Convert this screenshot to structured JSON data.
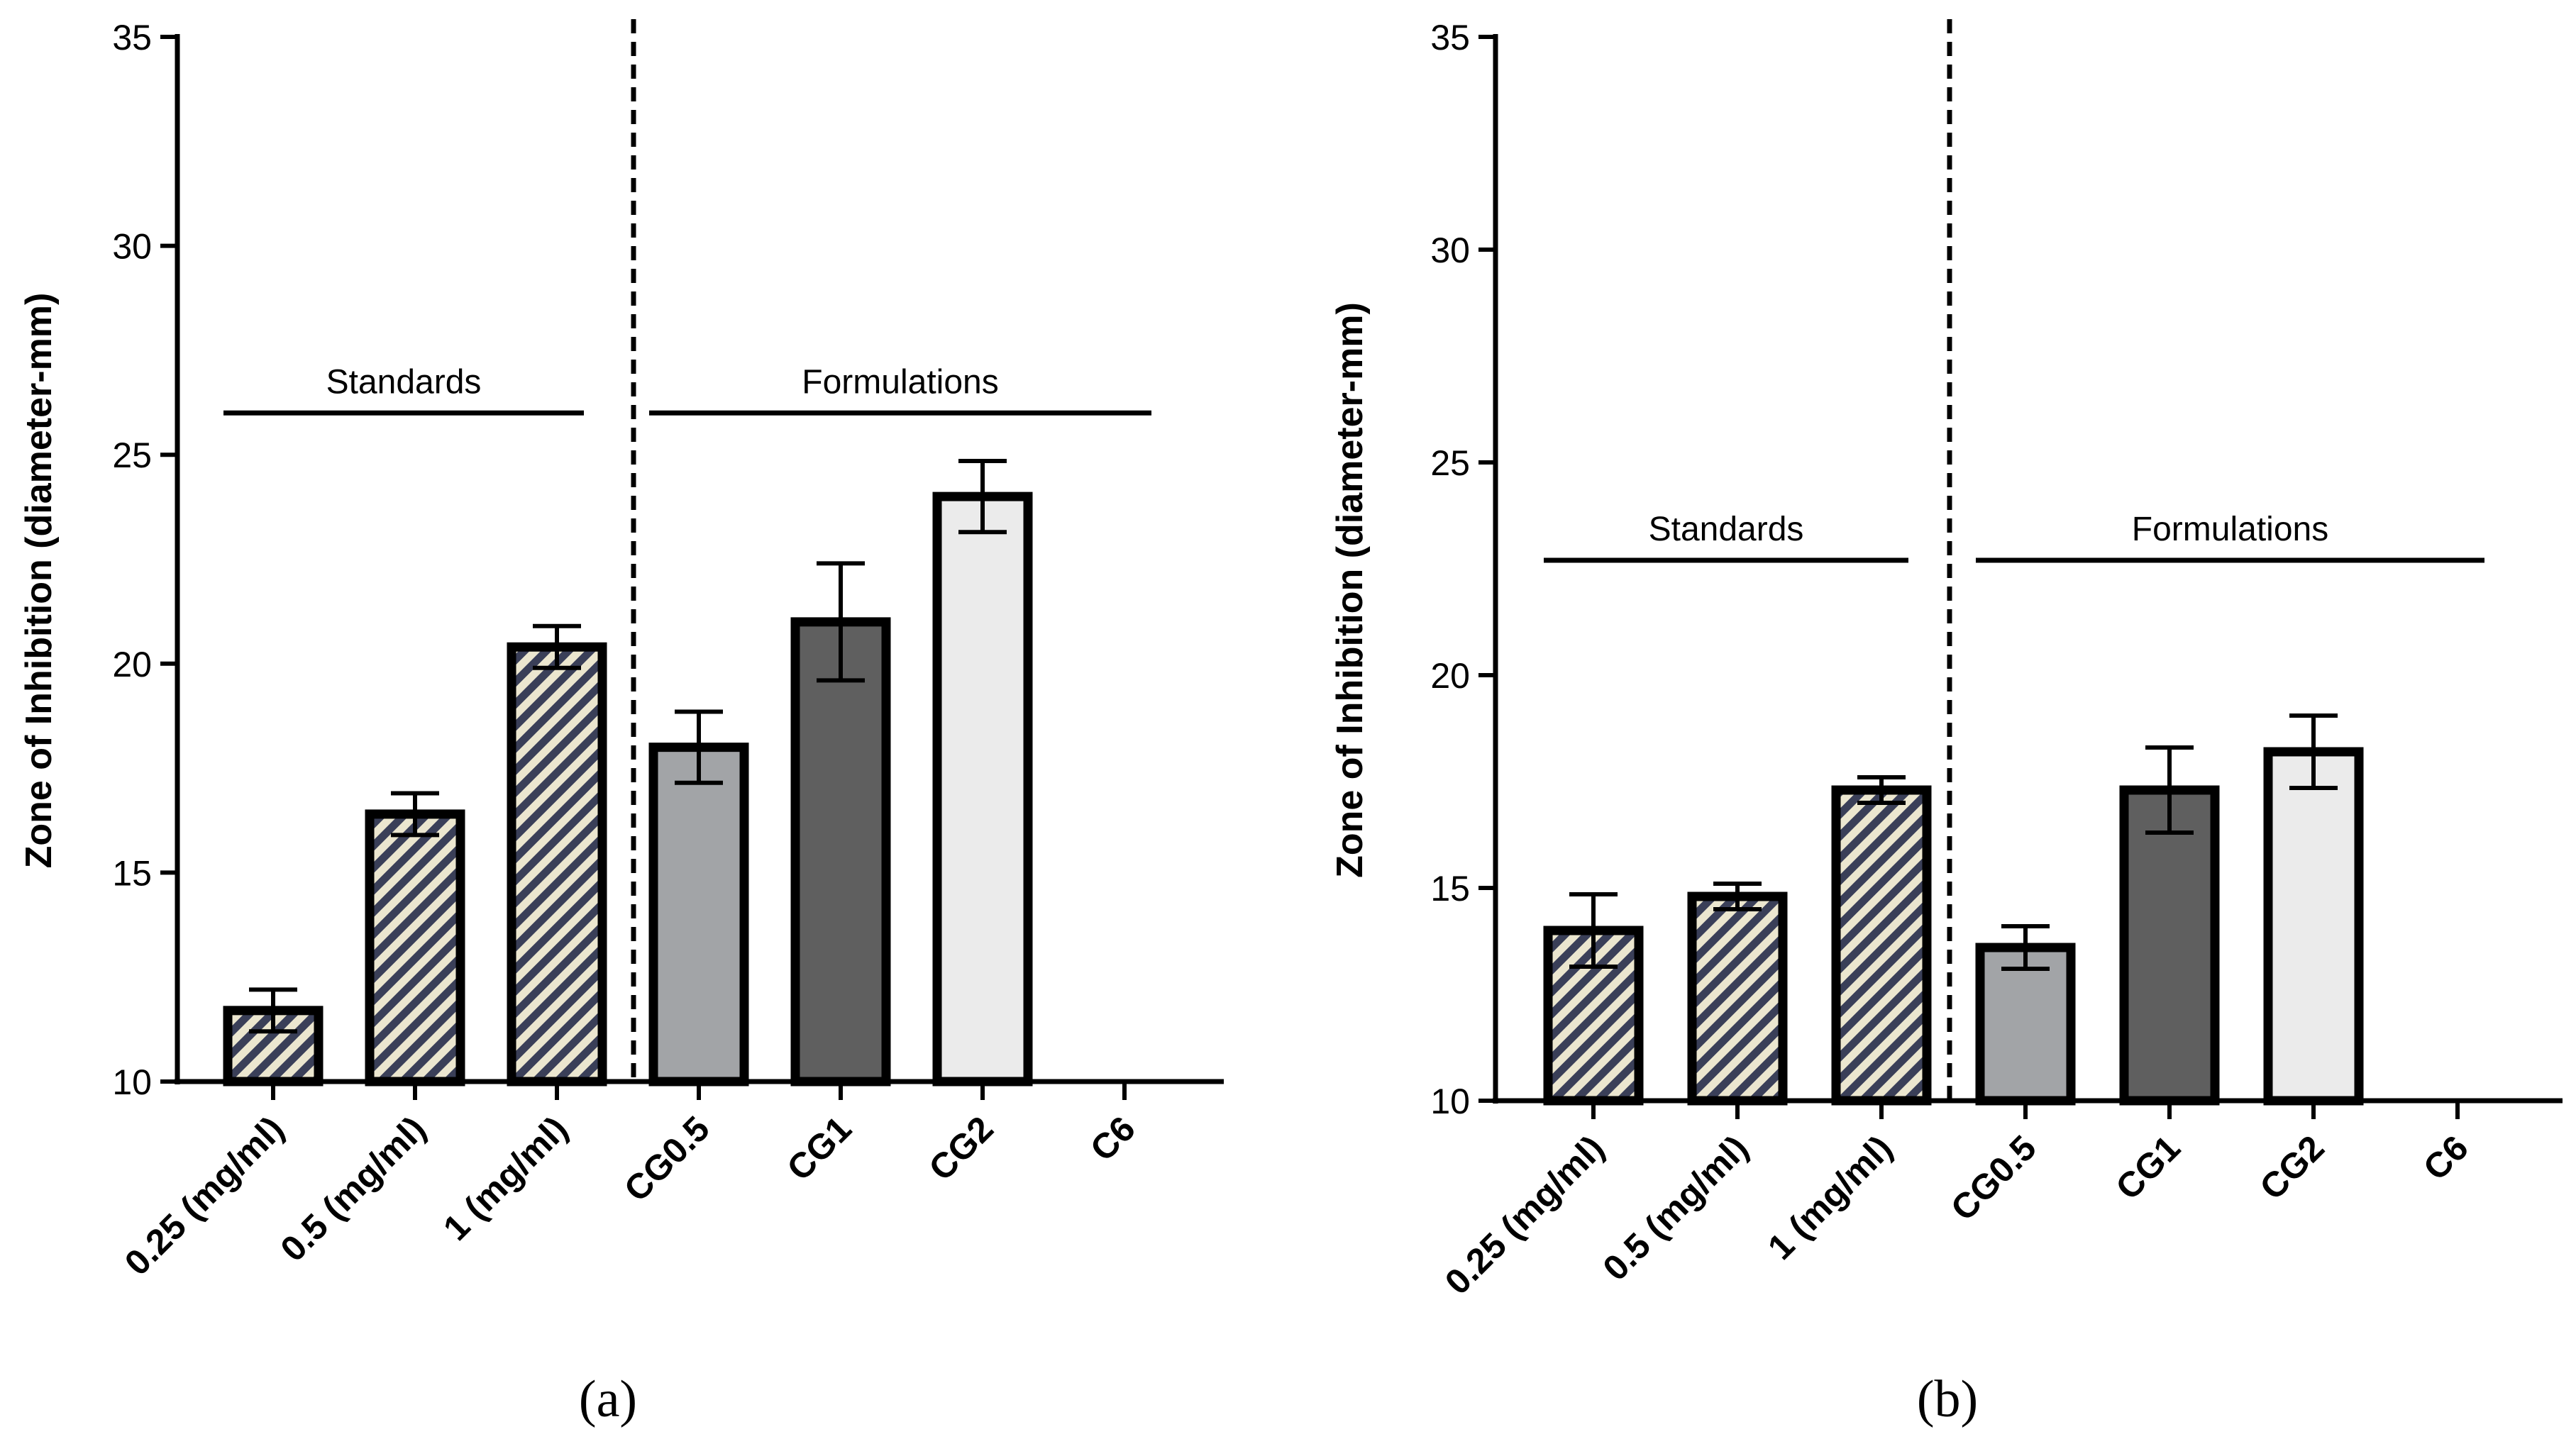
{
  "chart_data": [
    {
      "type": "bar",
      "panel_label": "(a)",
      "ylabel": "Zone of Inhibition (diameter-mm)",
      "ylim": [
        10,
        35
      ],
      "yticks": [
        10,
        15,
        20,
        25,
        30,
        35
      ],
      "categories": [
        "0.25 (mg/ml)",
        "0.5 (mg/ml)",
        "1 (mg/ml)",
        "CG0.5",
        "CG1",
        "CG2",
        "C6"
      ],
      "values": [
        11.7,
        16.4,
        20.4,
        18.0,
        21.0,
        24.0,
        null
      ],
      "errors": [
        0.5,
        0.5,
        0.5,
        0.85,
        1.4,
        0.85,
        null
      ],
      "fills": [
        "hatch",
        "hatch",
        "hatch",
        "#a2a4a7",
        "#5f5f5f",
        "#ebebeb",
        null
      ],
      "groups": [
        {
          "label": "Standards",
          "from": 0,
          "to": 2,
          "y": 26.0
        },
        {
          "label": "Formulations",
          "from": 3,
          "to": 6,
          "y": 26.0
        }
      ],
      "divider_after": 2
    },
    {
      "type": "bar",
      "panel_label": "(b)",
      "ylabel": "Zone of Inhibition (diameter-mm)",
      "ylim": [
        10,
        35
      ],
      "yticks": [
        10,
        15,
        20,
        25,
        30,
        35
      ],
      "categories": [
        "0.25 (mg/ml)",
        "0.5 (mg/ml)",
        "1 (mg/ml)",
        "CG0.5",
        "CG1",
        "CG2",
        "C6"
      ],
      "values": [
        14.0,
        14.8,
        17.3,
        13.6,
        17.3,
        18.2,
        null
      ],
      "errors": [
        0.85,
        0.3,
        0.3,
        0.5,
        1.0,
        0.85,
        null
      ],
      "fills": [
        "hatch",
        "hatch",
        "hatch",
        "#a2a4a7",
        "#5f5f5f",
        "#ebebeb",
        null
      ],
      "groups": [
        {
          "label": "Standards",
          "from": 0,
          "to": 2,
          "y": 22.7
        },
        {
          "label": "Formulations",
          "from": 3,
          "to": 6,
          "y": 22.7
        }
      ],
      "divider_after": 2
    }
  ],
  "colors": {
    "axis": "#000000",
    "hatch_light": "#ebe6cf",
    "hatch_dark": "#3a3f58"
  }
}
